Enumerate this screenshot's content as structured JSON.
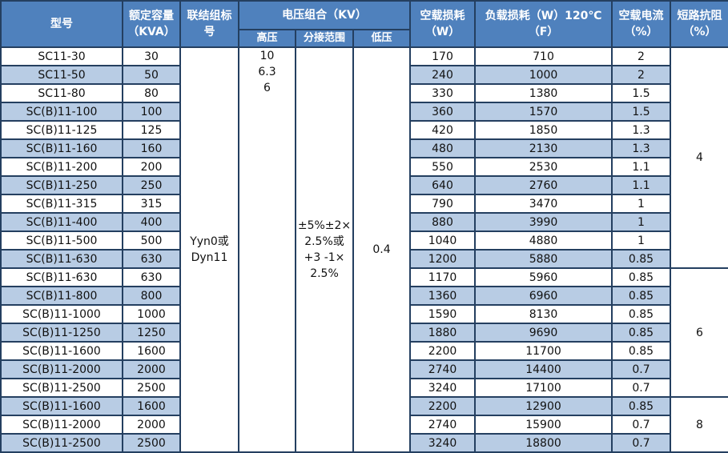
{
  "header": {
    "model": "型号",
    "capacity": [
      "额定容量",
      "（KVA）"
    ],
    "connection": [
      "联结组标",
      "号"
    ],
    "voltage_group": "电压组合（KV）",
    "high_voltage": "高压",
    "tap_range": "分接范围",
    "low_voltage": "低压",
    "no_load_loss": [
      "空载损耗",
      "（W）"
    ],
    "load_loss": [
      "负载损耗（W）120℃",
      "（F）"
    ],
    "no_load_current": [
      "空载电流",
      "（%）"
    ],
    "impedance": [
      "短路抗阻",
      "（%）"
    ]
  },
  "merged": {
    "connection": [
      "Yyn0或",
      "Dyn11"
    ],
    "high_voltage": [
      "10",
      "6.3",
      "6"
    ],
    "tap_range": [
      "±5%±2×",
      "2.5%或",
      "+3 -1×",
      "2.5%"
    ],
    "low_voltage": "0.4"
  },
  "impedance_groups": [
    {
      "value": "4",
      "rows": 12
    },
    {
      "value": "6",
      "rows": 7
    },
    {
      "value": "8",
      "rows": 3
    }
  ],
  "rows": [
    [
      "SC11-30",
      "30",
      "170",
      "710",
      "2"
    ],
    [
      "SC11-50",
      "50",
      "240",
      "1000",
      "2"
    ],
    [
      "SC11-80",
      "80",
      "330",
      "1380",
      "1.5"
    ],
    [
      "SC(B)11-100",
      "100",
      "360",
      "1570",
      "1.5"
    ],
    [
      "SC(B)11-125",
      "125",
      "420",
      "1850",
      "1.3"
    ],
    [
      "SC(B)11-160",
      "160",
      "480",
      "2130",
      "1.3"
    ],
    [
      "SC(B)11-200",
      "200",
      "550",
      "2530",
      "1.1"
    ],
    [
      "SC(B)11-250",
      "250",
      "640",
      "2760",
      "1.1"
    ],
    [
      "SC(B)11-315",
      "315",
      "790",
      "3470",
      "1"
    ],
    [
      "SC(B)11-400",
      "400",
      "880",
      "3990",
      "1"
    ],
    [
      "SC(B)11-500",
      "500",
      "1040",
      "4880",
      "1"
    ],
    [
      "SC(B)11-630",
      "630",
      "1200",
      "5880",
      "0.85"
    ],
    [
      "SC(B)11-630",
      "630",
      "1170",
      "5960",
      "0.85"
    ],
    [
      "SC(B)11-800",
      "800",
      "1360",
      "6960",
      "0.85"
    ],
    [
      "SC(B)11-1000",
      "1000",
      "1590",
      "8130",
      "0.85"
    ],
    [
      "SC(B)11-1250",
      "1250",
      "1880",
      "9690",
      "0.85"
    ],
    [
      "SC(B)11-1600",
      "1600",
      "2200",
      "11700",
      "0.85"
    ],
    [
      "SC(B)11-2000",
      "2000",
      "2740",
      "14400",
      "0.7"
    ],
    [
      "SC(B)11-2500",
      "2500",
      "3240",
      "17100",
      "0.7"
    ],
    [
      "SC(B)11-1600",
      "1600",
      "2200",
      "12900",
      "0.85"
    ],
    [
      "SC(B)11-2000",
      "2000",
      "2740",
      "15900",
      "0.7"
    ],
    [
      "SC(B)11-2500",
      "2500",
      "3240",
      "18800",
      "0.7"
    ]
  ],
  "colors": {
    "header": "#4F81BD",
    "stripe": "#B8CCE4",
    "border": "#243F60"
  }
}
